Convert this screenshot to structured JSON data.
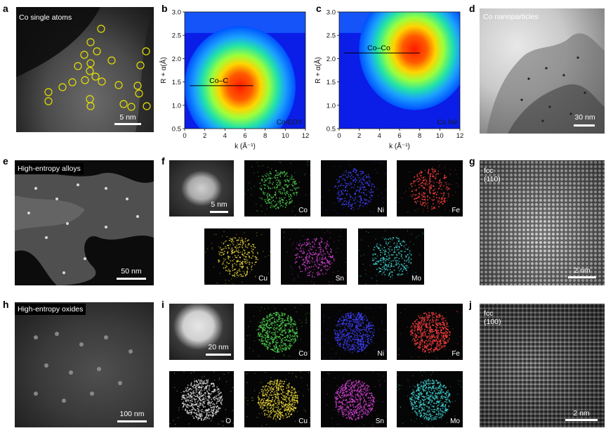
{
  "panels": {
    "a": {
      "label": "a",
      "caption": "Co single atoms",
      "scalebar": "5 nm"
    },
    "b": {
      "label": "b",
      "annotation": "Co–C",
      "sample": "Co/GDY"
    },
    "c": {
      "label": "c",
      "annotation": "Co–Co",
      "sample": "Co foil"
    },
    "d": {
      "label": "d",
      "caption": "Co nanoparticles",
      "scalebar": "30 nm"
    },
    "e": {
      "label": "e",
      "caption": "High-entropy alloys",
      "scalebar": "50 nm"
    },
    "f": {
      "label": "f",
      "scalebar": "5 nm",
      "elements": [
        "Co",
        "Ni",
        "Fe",
        "Cu",
        "Sn",
        "Mo"
      ]
    },
    "g": {
      "label": "g",
      "caption1": "fcc",
      "caption2": "(110)",
      "scalebar": "2 nm"
    },
    "h": {
      "label": "h",
      "caption": "High-entropy oxides",
      "scalebar": "100 nm"
    },
    "i": {
      "label": "i",
      "scalebar": "20 nm",
      "elements": [
        "Co",
        "Ni",
        "Fe",
        "O",
        "Cu",
        "Sn",
        "Mo"
      ]
    },
    "j": {
      "label": "j",
      "caption1": "fcc",
      "caption2": "(100)",
      "scalebar": "2 nm"
    }
  },
  "element_colors": {
    "Co": "#4fd14f",
    "Ni": "#4040ff",
    "Fe": "#ff4040",
    "Cu": "#e6d23a",
    "Sn": "#d040d0",
    "Mo": "#40d0d0",
    "O": "#e0e0e0"
  },
  "chart_data": [
    {
      "type": "heatmap",
      "title": "",
      "xlabel": "k (Å⁻¹)",
      "ylabel": "R + α(Å)",
      "xlim": [
        0,
        12
      ],
      "ylim": [
        0.5,
        3.0
      ],
      "xticks": [
        "0",
        "2",
        "4",
        "6",
        "8",
        "10",
        "12"
      ],
      "yticks": [
        "0.5",
        "1.0",
        "1.5",
        "2.0",
        "2.5",
        "3.0"
      ],
      "peak": {
        "k": 5.5,
        "R": 1.4
      },
      "annotation": {
        "text": "Co–C",
        "R": 1.42,
        "k_range": [
          0.5,
          6.8
        ]
      },
      "legend": "Co/GDY"
    },
    {
      "type": "heatmap",
      "title": "",
      "xlabel": "k (Å⁻¹)",
      "ylabel": "R + α(Å)",
      "xlim": [
        0,
        12
      ],
      "ylim": [
        0.5,
        3.0
      ],
      "xticks": [
        "0",
        "2",
        "4",
        "6",
        "8",
        "10",
        "12"
      ],
      "yticks": [
        "0.5",
        "1.0",
        "1.5",
        "2.0",
        "2.5",
        "3.0"
      ],
      "peak": {
        "k": 7.5,
        "R": 2.2
      },
      "annotation": {
        "text": "Co–Co",
        "R": 2.12,
        "k_range": [
          0.5,
          8.0
        ]
      },
      "legend": "Co foil"
    }
  ]
}
